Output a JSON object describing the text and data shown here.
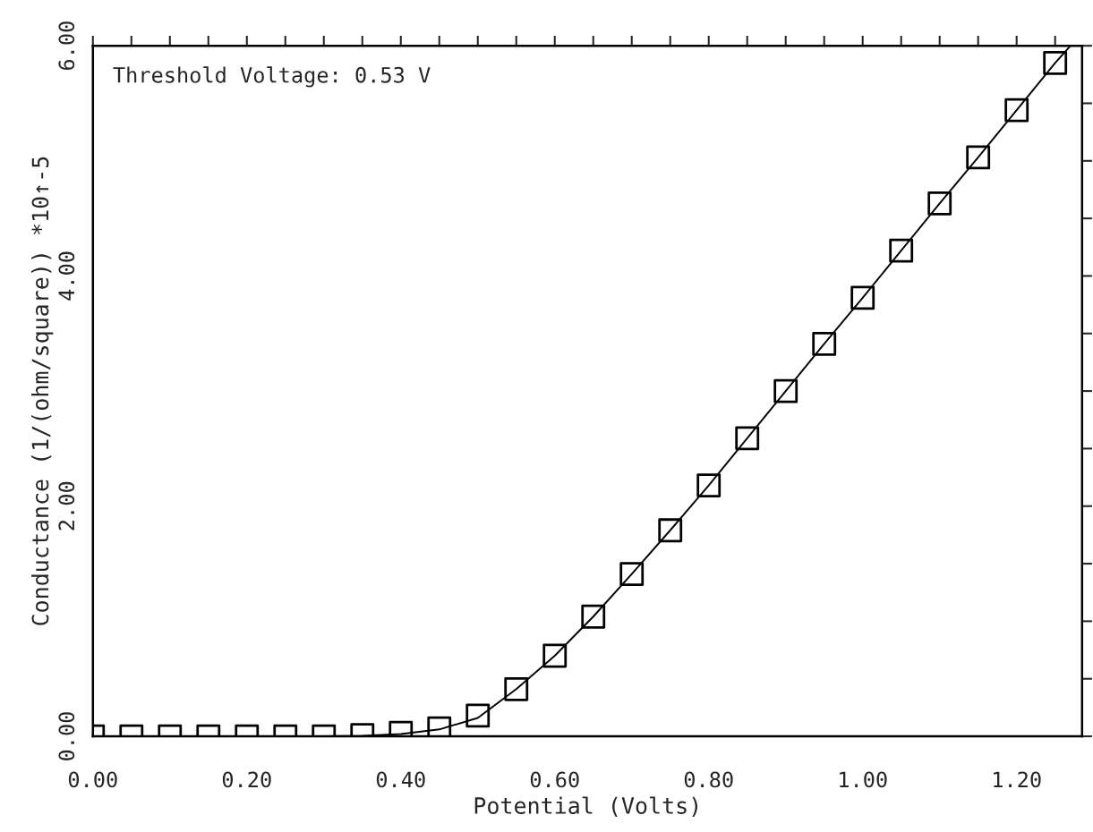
{
  "chart_data": {
    "type": "scatter",
    "xlabel": "Potential (Volts)",
    "ylabel": "Conductance (1/(ohm/square)) *10↑-5",
    "annotations": [
      "Threshold Voltage: 0.53 V"
    ],
    "xlim": [
      0,
      1.285
    ],
    "ylim": [
      0,
      6.0
    ],
    "xticks": [
      {
        "value": 0,
        "label": "0.00"
      },
      {
        "value": 0.05,
        "label": null
      },
      {
        "value": 0.1,
        "label": null
      },
      {
        "value": 0.15,
        "label": null
      },
      {
        "value": 0.2,
        "label": "0.20"
      },
      {
        "value": 0.25,
        "label": null
      },
      {
        "value": 0.3,
        "label": null
      },
      {
        "value": 0.35,
        "label": null
      },
      {
        "value": 0.4,
        "label": "0.40"
      },
      {
        "value": 0.45,
        "label": null
      },
      {
        "value": 0.5,
        "label": null
      },
      {
        "value": 0.55,
        "label": null
      },
      {
        "value": 0.6,
        "label": "0.60"
      },
      {
        "value": 0.65,
        "label": null
      },
      {
        "value": 0.7,
        "label": null
      },
      {
        "value": 0.75,
        "label": null
      },
      {
        "value": 0.8,
        "label": "0.80"
      },
      {
        "value": 0.85,
        "label": null
      },
      {
        "value": 0.9,
        "label": null
      },
      {
        "value": 0.95,
        "label": null
      },
      {
        "value": 1.0,
        "label": "1.00"
      },
      {
        "value": 1.05,
        "label": null
      },
      {
        "value": 1.1,
        "label": null
      },
      {
        "value": 1.15,
        "label": null
      },
      {
        "value": 1.2,
        "label": "1.20"
      },
      {
        "value": 1.25,
        "label": null
      }
    ],
    "yticks": [
      {
        "value": 0,
        "label": "0.00"
      },
      {
        "value": 0.5,
        "label": null
      },
      {
        "value": 1.0,
        "label": null
      },
      {
        "value": 1.5,
        "label": null
      },
      {
        "value": 2.0,
        "label": "2.00"
      },
      {
        "value": 2.5,
        "label": null
      },
      {
        "value": 3.0,
        "label": null
      },
      {
        "value": 3.5,
        "label": null
      },
      {
        "value": 4.0,
        "label": "4.00"
      },
      {
        "value": 4.5,
        "label": null
      },
      {
        "value": 5.0,
        "label": null
      },
      {
        "value": 5.5,
        "label": null
      },
      {
        "value": 6.0,
        "label": "6.00"
      }
    ],
    "series": [
      {
        "marker": "square",
        "color": "#000000",
        "x": [
          0,
          0.05,
          0.1,
          0.15,
          0.2,
          0.25,
          0.3,
          0.35,
          0.4,
          0.45,
          0.5,
          0.55,
          0.6,
          0.65,
          0.7,
          0.75,
          0.8,
          0.85,
          0.9,
          0.95,
          1.0,
          1.05,
          1.1,
          1.15,
          1.2,
          1.25
        ],
        "values": [
          0,
          0,
          0,
          0,
          0,
          0,
          0,
          0.01,
          0.03,
          0.07,
          0.18,
          0.41,
          0.7,
          1.04,
          1.41,
          1.79,
          2.18,
          2.59,
          3.0,
          3.41,
          3.81,
          4.22,
          4.63,
          5.03,
          5.44,
          5.85
        ]
      },
      {
        "type": "line",
        "marker": "none",
        "line_style": "solid",
        "color": "#000000",
        "x": [
          0,
          0.3,
          0.35,
          0.4,
          0.45,
          0.5,
          0.55,
          0.6,
          0.65,
          0.7,
          0.75,
          0.8,
          0.85,
          0.9,
          0.95,
          1.0,
          1.05,
          1.1,
          1.15,
          1.2,
          1.25,
          1.27
        ],
        "values": [
          0,
          0,
          0.005,
          0.02,
          0.06,
          0.16,
          0.41,
          0.7,
          1.04,
          1.41,
          1.79,
          2.18,
          2.59,
          3.0,
          3.41,
          3.81,
          4.22,
          4.63,
          5.03,
          5.44,
          5.85,
          6.0
        ]
      }
    ]
  }
}
